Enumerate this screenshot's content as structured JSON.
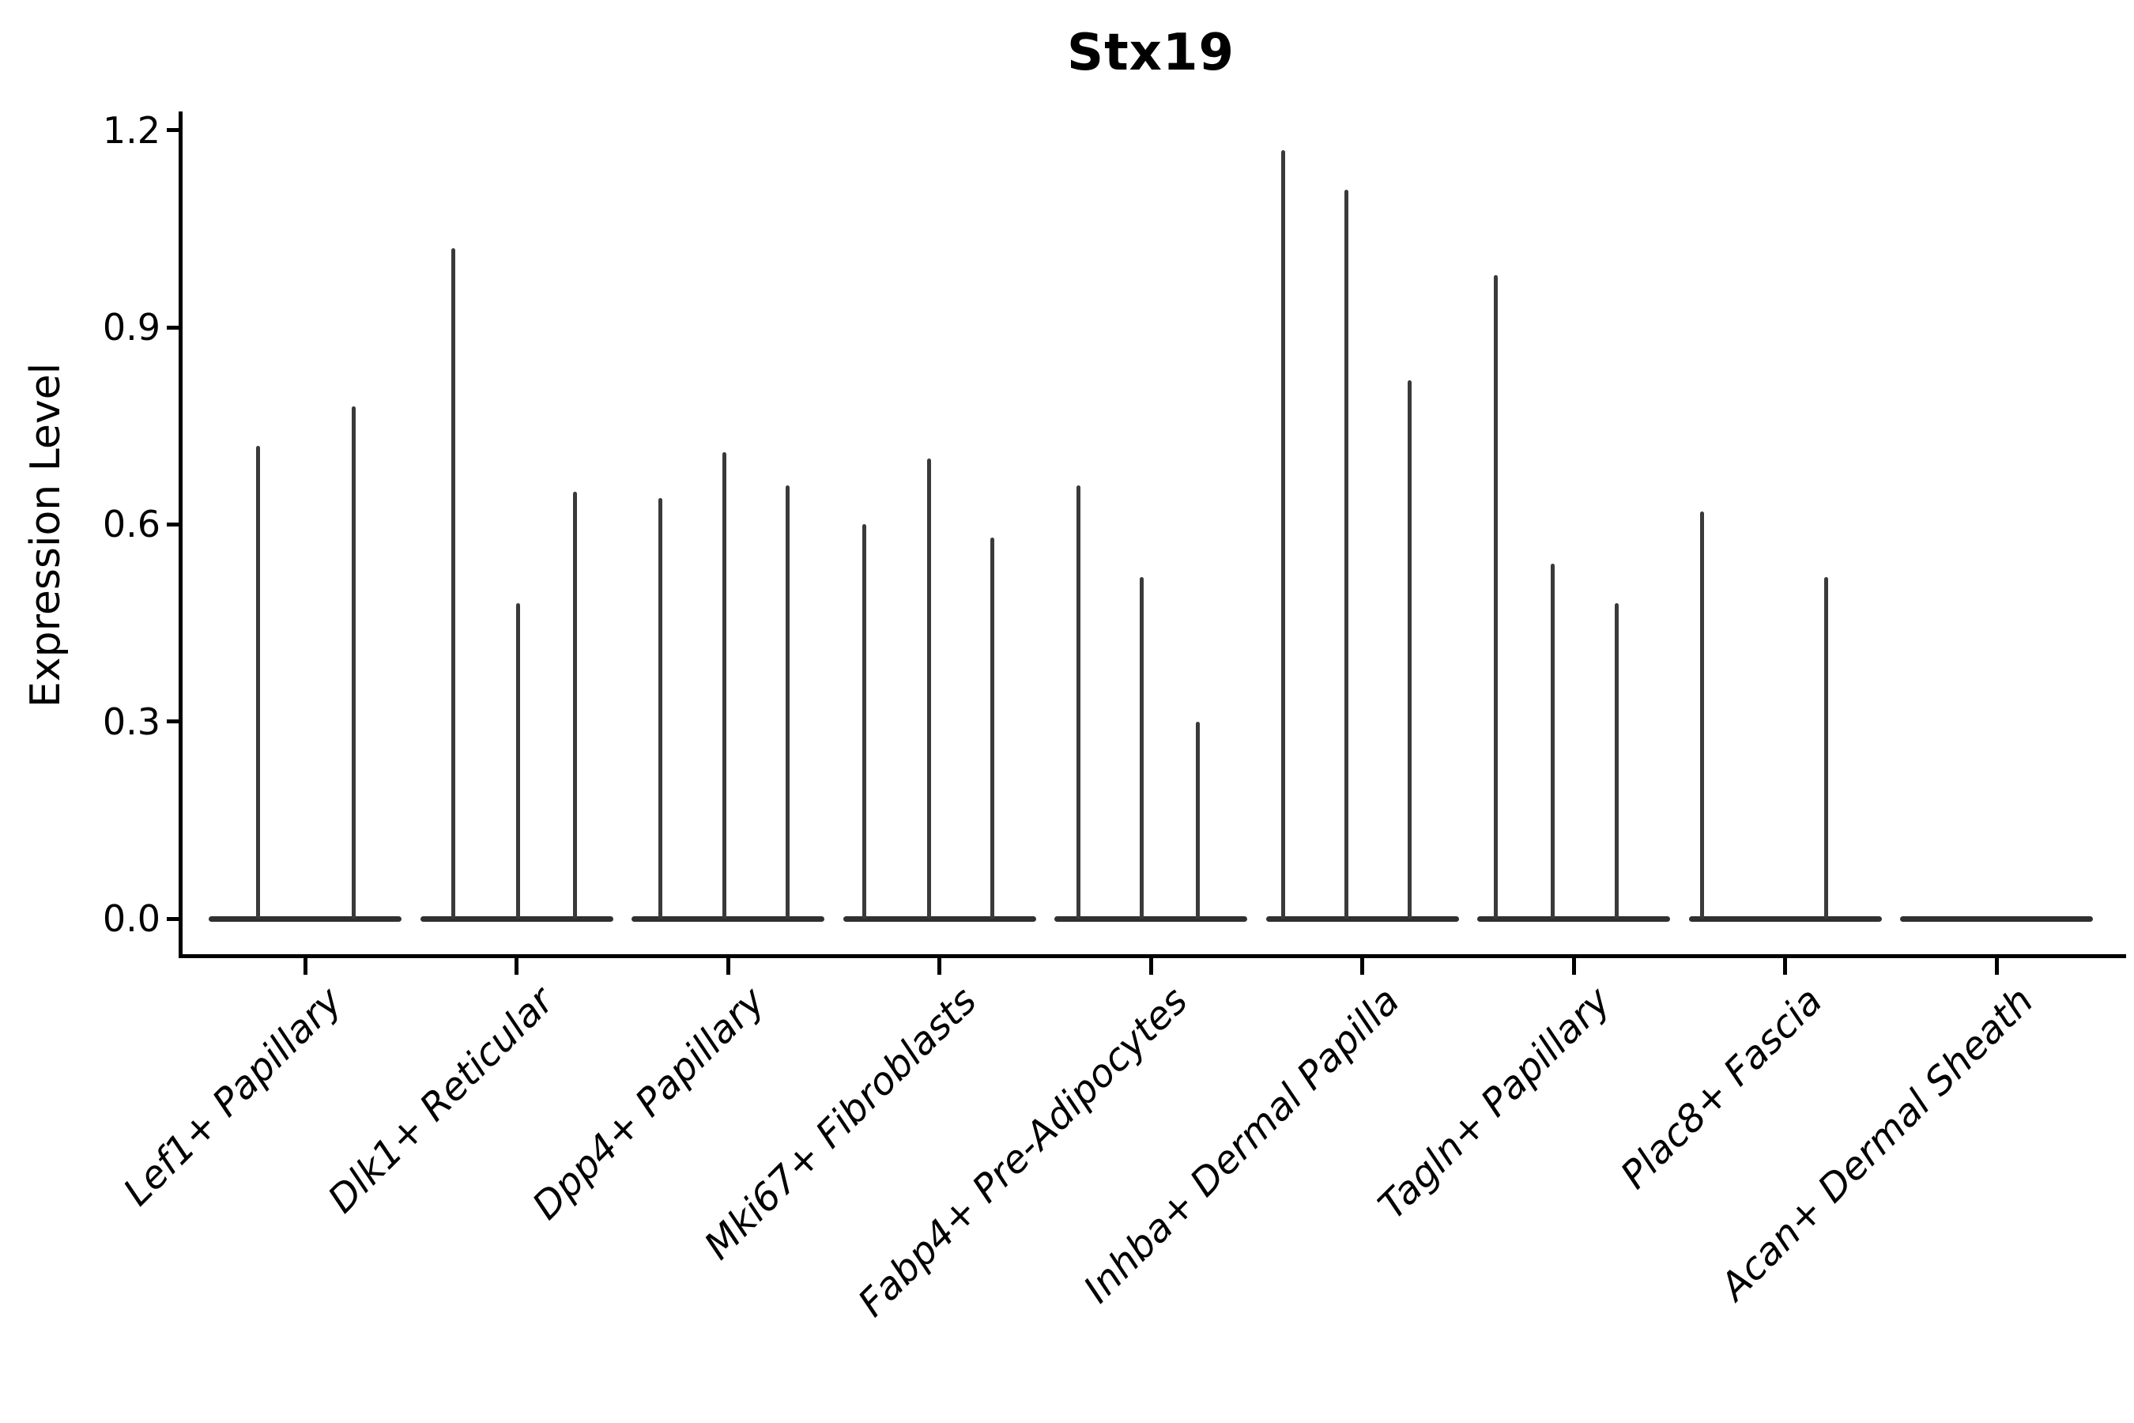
{
  "chart_data": {
    "type": "violin",
    "title": "Stx19",
    "ylabel": "Expression Level",
    "xlabel": "",
    "ylim": [
      0,
      1.2
    ],
    "yticks": [
      "0.0",
      "0.3",
      "0.6",
      "0.9",
      "1.2"
    ],
    "grid": false,
    "legend": "none",
    "categories": [
      "Lef1+ Papillary",
      "Dlk1+ Reticular",
      "Dpp4+ Papillary",
      "Mki67+ Fibroblasts",
      "Fabp4+ Pre-Adipocytes",
      "Inhba+ Dermal Papilla",
      "Tagln+ Papillary",
      "Plac8+ Fascia",
      "Acan+ Dermal Sheath"
    ],
    "series": [
      {
        "category": "Lef1+ Papillary",
        "baseline_value": 0.0,
        "spikes": [
          {
            "offset": -60,
            "value": 0.72
          },
          {
            "offset": 61,
            "value": 0.78
          }
        ]
      },
      {
        "category": "Dlk1+ Reticular",
        "baseline_value": 0.0,
        "spikes": [
          {
            "offset": -80,
            "value": 1.02
          },
          {
            "offset": 2,
            "value": 0.48
          },
          {
            "offset": 74,
            "value": 0.65
          }
        ]
      },
      {
        "category": "Dpp4+ Papillary",
        "baseline_value": 0.0,
        "spikes": [
          {
            "offset": -86,
            "value": 0.64
          },
          {
            "offset": -5,
            "value": 0.71
          },
          {
            "offset": 75,
            "value": 0.66
          }
        ]
      },
      {
        "category": "Mki67+ Fibroblasts",
        "baseline_value": 0.0,
        "spikes": [
          {
            "offset": -95,
            "value": 0.6
          },
          {
            "offset": -13,
            "value": 0.7
          },
          {
            "offset": 67,
            "value": 0.58
          }
        ]
      },
      {
        "category": "Fabp4+ Pre-Adipocytes",
        "baseline_value": 0.0,
        "spikes": [
          {
            "offset": -92,
            "value": 0.66
          },
          {
            "offset": -12,
            "value": 0.52
          },
          {
            "offset": 59,
            "value": 0.3
          }
        ]
      },
      {
        "category": "Inhba+ Dermal Papilla",
        "baseline_value": 0.0,
        "spikes": [
          {
            "offset": -100,
            "value": 1.17
          },
          {
            "offset": -20,
            "value": 1.11
          },
          {
            "offset": 60,
            "value": 0.82
          }
        ]
      },
      {
        "category": "Tagln+ Papillary",
        "baseline_value": 0.0,
        "spikes": [
          {
            "offset": -99,
            "value": 0.98
          },
          {
            "offset": -27,
            "value": 0.54
          },
          {
            "offset": 54,
            "value": 0.48
          }
        ]
      },
      {
        "category": "Plac8+ Fascia",
        "baseline_value": 0.0,
        "spikes": [
          {
            "offset": -105,
            "value": 0.62
          },
          {
            "offset": 52,
            "value": 0.52
          }
        ]
      },
      {
        "category": "Acan+ Dermal Sheath",
        "baseline_value": 0.0,
        "spikes": []
      }
    ],
    "colors": {
      "spike": "#3a3a3a",
      "baseline_violin": "#303030",
      "axis": "#000000",
      "text": "#000000",
      "background": "#ffffff"
    }
  }
}
